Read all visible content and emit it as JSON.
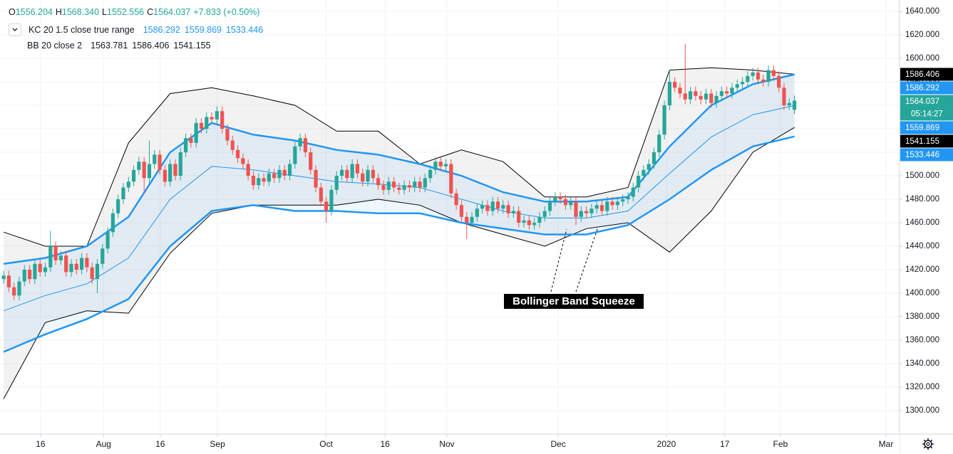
{
  "chart_data": {
    "type": "candlestick",
    "x": [
      0,
      1,
      2,
      3,
      4,
      5,
      6,
      7,
      8,
      9,
      10,
      11,
      12,
      13,
      14,
      15,
      16,
      17,
      18,
      19,
      20,
      21,
      22,
      23,
      24,
      25,
      26,
      27,
      28,
      29,
      30,
      31,
      32,
      33,
      34,
      35,
      36,
      37,
      38,
      39,
      40,
      41,
      42,
      43,
      44,
      45,
      46,
      47,
      48,
      49,
      50,
      51,
      52,
      53,
      54,
      55,
      56,
      57,
      58,
      59,
      60,
      61,
      62,
      63,
      64,
      65,
      66,
      67,
      68,
      69,
      70,
      71,
      72,
      73,
      74,
      75,
      76,
      77,
      78,
      79,
      80,
      81,
      82,
      83,
      84,
      85,
      86,
      87,
      88,
      89,
      90,
      91,
      92,
      93,
      94,
      95,
      96,
      97,
      98,
      99,
      100,
      101,
      102,
      103,
      104,
      105,
      106,
      107,
      108,
      109,
      110,
      111,
      112,
      113,
      114,
      115,
      116,
      117,
      118,
      119,
      120,
      121,
      122,
      123,
      124,
      125,
      126,
      127,
      128,
      129,
      130,
      131,
      132,
      133,
      134,
      135,
      136,
      137,
      138,
      139,
      140,
      141,
      142,
      143,
      144,
      145,
      146,
      147,
      148,
      149,
      150,
      151,
      152
    ],
    "open": [
      1412,
      1415,
      1405,
      1398,
      1410,
      1420,
      1412,
      1425,
      1418,
      1422,
      1440,
      1428,
      1432,
      1418,
      1425,
      1420,
      1430,
      1422,
      1412,
      1425,
      1438,
      1452,
      1468,
      1480,
      1490,
      1495,
      1505,
      1512,
      1498,
      1510,
      1518,
      1505,
      1495,
      1510,
      1500,
      1520,
      1532,
      1528,
      1545,
      1540,
      1550,
      1548,
      1555,
      1540,
      1530,
      1522,
      1515,
      1510,
      1500,
      1492,
      1498,
      1495,
      1502,
      1498,
      1505,
      1500,
      1510,
      1525,
      1532,
      1520,
      1505,
      1490,
      1478,
      1470,
      1488,
      1500,
      1505,
      1498,
      1510,
      1502,
      1495,
      1505,
      1498,
      1492,
      1488,
      1495,
      1490,
      1488,
      1492,
      1490,
      1495,
      1490,
      1498,
      1505,
      1512,
      1508,
      1510,
      1485,
      1475,
      1465,
      1460,
      1465,
      1472,
      1475,
      1470,
      1478,
      1472,
      1475,
      1468,
      1470,
      1460,
      1462,
      1458,
      1460,
      1465,
      1470,
      1478,
      1482,
      1480,
      1475,
      1478,
      1465,
      1470,
      1468,
      1472,
      1475,
      1470,
      1478,
      1475,
      1478,
      1480,
      1482,
      1490,
      1500,
      1505,
      1510,
      1520,
      1535,
      1560,
      1580,
      1575,
      1570,
      1565,
      1572,
      1568,
      1565,
      1570,
      1562,
      1568,
      1572,
      1570,
      1575,
      1578,
      1580,
      1585,
      1588,
      1582,
      1580,
      1590,
      1585,
      1575,
      1560,
      1556.204
    ],
    "high": [
      1419,
      1419,
      1409,
      1414,
      1424,
      1424,
      1429,
      1429,
      1426,
      1453,
      1444,
      1436,
      1436,
      1429,
      1429,
      1434,
      1434,
      1426,
      1429,
      1442,
      1456,
      1472,
      1484,
      1494,
      1499,
      1509,
      1516,
      1516,
      1530,
      1522,
      1522,
      1509,
      1514,
      1514,
      1524,
      1536,
      1536,
      1549,
      1549,
      1554,
      1554,
      1559,
      1559,
      1544,
      1534,
      1526,
      1519,
      1514,
      1504,
      1502,
      1502,
      1506,
      1506,
      1509,
      1509,
      1514,
      1529,
      1536,
      1536,
      1524,
      1509,
      1494,
      1482,
      1492,
      1504,
      1509,
      1509,
      1514,
      1514,
      1506,
      1509,
      1509,
      1502,
      1496,
      1499,
      1499,
      1494,
      1496,
      1496,
      1499,
      1499,
      1502,
      1509,
      1516,
      1516,
      1514,
      1514,
      1489,
      1479,
      1469,
      1469,
      1476,
      1479,
      1479,
      1482,
      1482,
      1479,
      1479,
      1474,
      1474,
      1466,
      1466,
      1464,
      1469,
      1474,
      1482,
      1486,
      1486,
      1484,
      1482,
      1482,
      1474,
      1474,
      1476,
      1479,
      1479,
      1482,
      1482,
      1482,
      1484,
      1486,
      1494,
      1504,
      1509,
      1514,
      1524,
      1539,
      1564,
      1590,
      1584,
      1579,
      1612,
      1576,
      1576,
      1572,
      1574,
      1574,
      1572,
      1576,
      1576,
      1579,
      1582,
      1584,
      1589,
      1592,
      1592,
      1586,
      1594,
      1594,
      1589,
      1579,
      1566,
      1568.34
    ],
    "low": [
      1408,
      1401,
      1394,
      1394,
      1406,
      1408,
      1408,
      1414,
      1414,
      1418,
      1424,
      1424,
      1414,
      1414,
      1416,
      1416,
      1418,
      1408,
      1400,
      1421,
      1434,
      1448,
      1464,
      1476,
      1486,
      1491,
      1501,
      1485,
      1494,
      1506,
      1501,
      1491,
      1491,
      1496,
      1496,
      1516,
      1524,
      1524,
      1536,
      1536,
      1544,
      1544,
      1536,
      1526,
      1518,
      1511,
      1506,
      1496,
      1488,
      1488,
      1491,
      1491,
      1494,
      1494,
      1496,
      1496,
      1506,
      1521,
      1516,
      1501,
      1486,
      1474,
      1460,
      1466,
      1484,
      1496,
      1494,
      1494,
      1498,
      1491,
      1491,
      1494,
      1488,
      1484,
      1484,
      1486,
      1484,
      1484,
      1486,
      1486,
      1486,
      1486,
      1494,
      1501,
      1504,
      1504,
      1481,
      1471,
      1461,
      1446,
      1456,
      1461,
      1468,
      1466,
      1466,
      1468,
      1468,
      1464,
      1464,
      1456,
      1456,
      1454,
      1454,
      1456,
      1461,
      1466,
      1474,
      1476,
      1471,
      1471,
      1458,
      1461,
      1464,
      1464,
      1468,
      1466,
      1466,
      1471,
      1471,
      1474,
      1476,
      1478,
      1486,
      1496,
      1501,
      1506,
      1516,
      1531,
      1556,
      1571,
      1566,
      1561,
      1561,
      1564,
      1561,
      1561,
      1558,
      1558,
      1564,
      1566,
      1566,
      1571,
      1574,
      1576,
      1581,
      1578,
      1576,
      1576,
      1581,
      1571,
      1556,
      1556,
      1552.556
    ],
    "close": [
      1415,
      1405,
      1398,
      1410,
      1420,
      1412,
      1425,
      1418,
      1422,
      1440,
      1428,
      1432,
      1418,
      1425,
      1420,
      1430,
      1422,
      1412,
      1425,
      1438,
      1452,
      1468,
      1480,
      1490,
      1495,
      1505,
      1512,
      1498,
      1510,
      1518,
      1505,
      1495,
      1510,
      1500,
      1520,
      1532,
      1528,
      1545,
      1540,
      1550,
      1548,
      1555,
      1540,
      1530,
      1522,
      1515,
      1510,
      1500,
      1492,
      1498,
      1495,
      1502,
      1498,
      1505,
      1500,
      1510,
      1525,
      1532,
      1520,
      1505,
      1490,
      1478,
      1470,
      1488,
      1500,
      1505,
      1498,
      1510,
      1502,
      1495,
      1505,
      1498,
      1492,
      1488,
      1495,
      1490,
      1488,
      1492,
      1490,
      1495,
      1490,
      1498,
      1505,
      1512,
      1508,
      1510,
      1485,
      1475,
      1465,
      1460,
      1465,
      1472,
      1475,
      1470,
      1478,
      1472,
      1475,
      1468,
      1470,
      1460,
      1462,
      1458,
      1460,
      1465,
      1470,
      1478,
      1482,
      1480,
      1475,
      1478,
      1465,
      1470,
      1468,
      1472,
      1475,
      1470,
      1478,
      1475,
      1478,
      1480,
      1482,
      1490,
      1500,
      1505,
      1510,
      1520,
      1535,
      1560,
      1580,
      1575,
      1570,
      1565,
      1572,
      1568,
      1565,
      1570,
      1562,
      1568,
      1572,
      1570,
      1575,
      1578,
      1580,
      1585,
      1588,
      1582,
      1580,
      1590,
      1585,
      1575,
      1560,
      1562,
      1564.037
    ],
    "up_color": "#26a69a",
    "down_color": "#ef5350",
    "xlim": [
      -0.7,
      172.2
    ],
    "xticks": [
      {
        "value": 7.1,
        "label": "16"
      },
      {
        "value": 19.2,
        "label": "Aug"
      },
      {
        "value": 30.1,
        "label": "16"
      },
      {
        "value": 41.1,
        "label": "Sep"
      },
      {
        "value": 62.0,
        "label": "Oct"
      },
      {
        "value": 73.3,
        "label": "16"
      },
      {
        "value": 85.2,
        "label": "Nov"
      },
      {
        "value": 106.6,
        "label": "Dec"
      },
      {
        "value": 127.4,
        "label": "2020"
      },
      {
        "value": 138.6,
        "label": "17"
      },
      {
        "value": 149.3,
        "label": "Feb"
      },
      {
        "value": 169.6,
        "label": "Mar"
      }
    ],
    "ylim": [
      1280,
      1649.7
    ],
    "yticks": [
      {
        "value": 1300,
        "label": "1300.000"
      },
      {
        "value": 1320,
        "label": "1320.000"
      },
      {
        "value": 1340,
        "label": "1340.000"
      },
      {
        "value": 1360,
        "label": "1360.000"
      },
      {
        "value": 1380,
        "label": "1380.000"
      },
      {
        "value": 1400,
        "label": "1400.000"
      },
      {
        "value": 1420,
        "label": "1420.000"
      },
      {
        "value": 1440,
        "label": "1440.000"
      },
      {
        "value": 1460,
        "label": "1460.000"
      },
      {
        "value": 1480,
        "label": "1480.000"
      },
      {
        "value": 1500,
        "label": "1500.000"
      },
      {
        "value": 1520,
        "label": "1520.000"
      },
      {
        "value": 1540,
        "label": "1540.000"
      },
      {
        "value": 1560,
        "label": "1560.000"
      },
      {
        "value": 1580,
        "label": "1580.000"
      },
      {
        "value": 1600,
        "label": "1600.000"
      },
      {
        "value": 1620,
        "label": "1620.000"
      },
      {
        "value": 1640,
        "label": "1640.000"
      }
    ],
    "grid": true,
    "status": [
      {
        "label": "O",
        "value": "1556.204"
      },
      {
        "label": "H",
        "value": "1568.340"
      },
      {
        "label": "L",
        "value": "1552.556"
      },
      {
        "label": "C",
        "value": "1564.037"
      }
    ],
    "change": "+7.833 (+0.50%)",
    "indicators": [
      {
        "label": "BB 20 close 2",
        "readout": [
          1563.781,
          1586.406,
          1541.155
        ],
        "readout_color": "#131722",
        "fill": "rgba(0,0,0,0.05)",
        "lines": [
          {
            "color": "#000000",
            "width": 1,
            "x": [
              0,
              8,
              16,
              24,
              32,
              40,
              48,
              56,
              64,
              72,
              80,
              88,
              96,
              104,
              112,
              120,
              128,
              136,
              144,
              152
            ],
            "values": [
              1452,
              1440,
              1440,
              1528,
              1570,
              1575,
              1568,
              1560,
              1538,
              1538,
              1510,
              1522,
              1512,
              1482,
              1482,
              1490,
              1590,
              1592,
              1590,
              1586.406
            ]
          },
          {
            "color": "#000000",
            "width": 1,
            "x": [
              0,
              8,
              16,
              24,
              32,
              40,
              48,
              56,
              64,
              72,
              80,
              88,
              96,
              104,
              112,
              120,
              128,
              136,
              144,
              152
            ],
            "values": [
              1310,
              1375,
              1385,
              1383,
              1434,
              1468,
              1475,
              1475,
              1475,
              1480,
              1475,
              1460,
              1450,
              1440,
              1455,
              1460,
              1435,
              1470,
              1520,
              1541.155
            ]
          }
        ]
      },
      {
        "label": "KC 20 1.5 close true range",
        "readout": [
          1586.292,
          1559.869,
          1533.446
        ],
        "readout_color": "#2196f3",
        "fill": "rgba(33,150,243,0.08)",
        "lines": [
          {
            "color": "#2196f3",
            "width": 2.5,
            "x": [
              0,
              8,
              16,
              24,
              32,
              40,
              48,
              56,
              64,
              72,
              80,
              88,
              96,
              104,
              112,
              120,
              128,
              136,
              144,
              152
            ],
            "values": [
              1425,
              1430,
              1440,
              1465,
              1520,
              1545,
              1535,
              1530,
              1522,
              1518,
              1510,
              1500,
              1486,
              1478,
              1478,
              1482,
              1525,
              1560,
              1578,
              1586.292
            ]
          },
          {
            "color": "#2196f3",
            "width": 1,
            "x": [
              0,
              8,
              16,
              24,
              32,
              40,
              48,
              56,
              64,
              72,
              80,
              88,
              96,
              104,
              112,
              120,
              128,
              136,
              144,
              152
            ],
            "values": [
              1385,
              1398,
              1408,
              1430,
              1480,
              1508,
              1505,
              1500,
              1495,
              1493,
              1490,
              1480,
              1470,
              1464,
              1464,
              1470,
              1502,
              1533,
              1552,
              1559.869
            ]
          },
          {
            "color": "#2196f3",
            "width": 2.5,
            "x": [
              0,
              8,
              16,
              24,
              32,
              40,
              48,
              56,
              64,
              72,
              80,
              88,
              96,
              104,
              112,
              120,
              128,
              136,
              144,
              152
            ],
            "values": [
              1350,
              1365,
              1378,
              1395,
              1440,
              1470,
              1475,
              1470,
              1470,
              1468,
              1468,
              1460,
              1455,
              1450,
              1450,
              1458,
              1480,
              1505,
              1525,
              1533.446
            ]
          }
        ]
      }
    ],
    "price_tags": [
      {
        "value": 1586.406,
        "color": "#000000"
      },
      {
        "value": 1586.292,
        "color": "#2196f3"
      },
      {
        "value": 1564.037,
        "color": "#26a69a",
        "sub": "05:14:27"
      },
      {
        "value": 1559.869,
        "color": "#2196f3"
      },
      {
        "value": 1541.155,
        "color": "#000000"
      },
      {
        "value": 1533.446,
        "color": "#2196f3"
      }
    ],
    "annotation": "Bollinger Band Squeeze"
  }
}
